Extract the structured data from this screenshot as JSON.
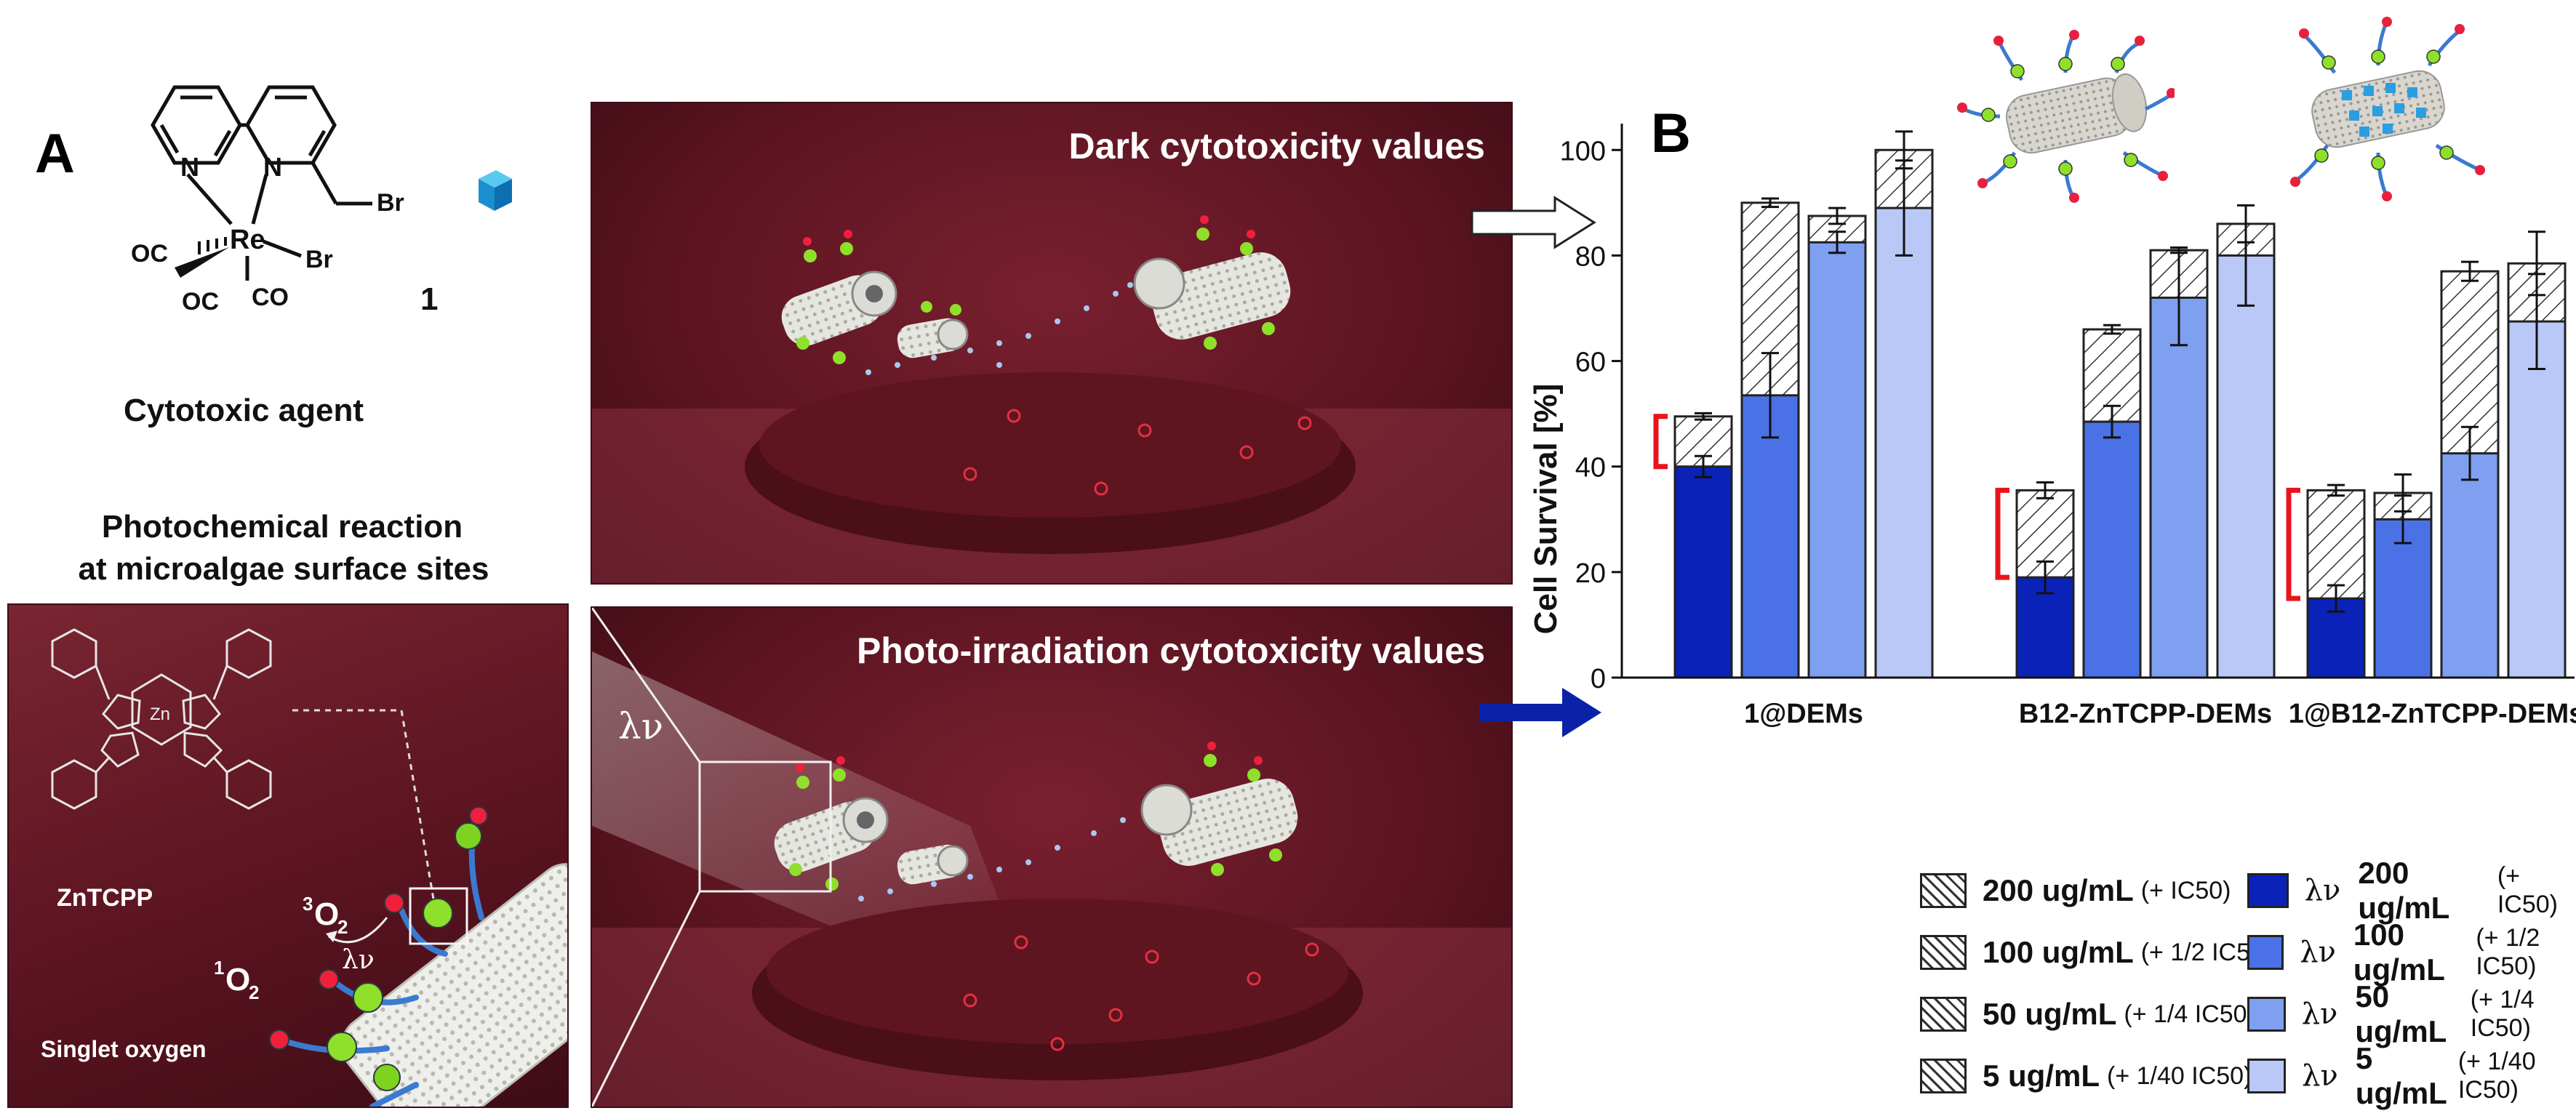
{
  "panel_a": {
    "letter": "A",
    "compound_number": "1",
    "compound_caption": "Cytotoxic agent",
    "atoms": {
      "n1": "N",
      "n2": "N",
      "re": "Re",
      "br1": "Br",
      "br2": "Br",
      "co1": "OC",
      "co2": "OC",
      "co3": "CO"
    },
    "reaction_title_line1": "Photochemical reaction",
    "reaction_title_line2": "at microalgae surface sites",
    "inset": {
      "zn": "Zn",
      "porphyrin_label": "ZnTCPP",
      "triplet_oxygen_sup": "3",
      "triplet_oxygen": "O",
      "triplet_oxygen_sub": "2",
      "singlet_oxygen_sup": "1",
      "singlet_oxygen": "O",
      "singlet_oxygen_sub": "2",
      "light": "λν",
      "singlet_label": "Singlet oxygen"
    }
  },
  "scenes": {
    "dark_title": "Dark cytotoxicity values",
    "photo_title": "Photo-irradiation cytotoxicity values",
    "light_symbol": "λν"
  },
  "panel_b": {
    "letter": "B",
    "legend_left": [
      {
        "main": "200 ug/mL",
        "sub": "(+ IC50)"
      },
      {
        "main": "100 ug/mL",
        "sub": "(+ 1/2 IC50)"
      },
      {
        "main": "50 ug/mL",
        "sub": "(+ 1/4 IC50)"
      },
      {
        "main": "5 ug/mL",
        "sub": "(+ 1/40 IC50)"
      }
    ],
    "legend_right": [
      {
        "lv": "λν",
        "main": "200 ug/mL",
        "sub": "(+ IC50)"
      },
      {
        "lv": "λν",
        "main": "100 ug/mL",
        "sub": "(+ 1/2 IC50)"
      },
      {
        "lv": "λν",
        "main": "50 ug/mL",
        "sub": "(+ 1/4 IC50)"
      },
      {
        "lv": "λν",
        "main": "5 ug/mL",
        "sub": "(+ 1/40 IC50)"
      }
    ]
  },
  "colors": {
    "scene_bg": "#5a1420",
    "blue_200": "#0a22b8",
    "blue_100": "#4a72e6",
    "blue_50": "#7f9ff0",
    "blue_5": "#b9c8f6",
    "bracket": "#e8141c"
  },
  "chart_data": {
    "type": "bar",
    "ylabel": "Cell Survival [%]",
    "ylim": [
      0,
      105
    ],
    "yticks": [
      0,
      20,
      40,
      60,
      80,
      100
    ],
    "categories": [
      "1@DEMs",
      "B12-ZnTCPP-DEMs",
      "1@B12-ZnTCPP-DEMs"
    ],
    "series": [
      {
        "name": "200 ug/mL (+ IC50)",
        "condition": "dark",
        "values": [
          49.5,
          35.5,
          35.5
        ],
        "errors": [
          0.6,
          1.5,
          1.0
        ]
      },
      {
        "name": "100 ug/mL (+ 1/2 IC50)",
        "condition": "dark",
        "values": [
          90,
          66,
          35
        ],
        "errors": [
          0.8,
          0.8,
          3.5
        ]
      },
      {
        "name": "50 ug/mL (+ 1/4 IC50)",
        "condition": "dark",
        "values": [
          87.5,
          81,
          77
        ],
        "errors": [
          1.5,
          0.5,
          1.8
        ]
      },
      {
        "name": "5 ug/mL (+ 1/40 IC50)",
        "condition": "dark",
        "values": [
          100,
          86,
          78.5
        ],
        "errors": [
          3.5,
          3.5,
          6.0
        ]
      },
      {
        "name": "200 ug/mL (+ IC50)",
        "condition": "light",
        "values": [
          40,
          19,
          15
        ],
        "errors": [
          2.0,
          3.0,
          2.5
        ]
      },
      {
        "name": "100 ug/mL (+ 1/2 IC50)",
        "condition": "light",
        "values": [
          53.5,
          48.5,
          30
        ],
        "errors": [
          8.0,
          3.0,
          4.5
        ]
      },
      {
        "name": "50 ug/mL (+ 1/4 IC50)",
        "condition": "light",
        "values": [
          82.5,
          72,
          42.5
        ],
        "errors": [
          2.0,
          9.0,
          5.0
        ]
      },
      {
        "name": "5 ug/mL (+ 1/40 IC50)",
        "condition": "light",
        "values": [
          89,
          80,
          67.5
        ],
        "errors": [
          9.0,
          9.5,
          9.0
        ]
      }
    ]
  }
}
